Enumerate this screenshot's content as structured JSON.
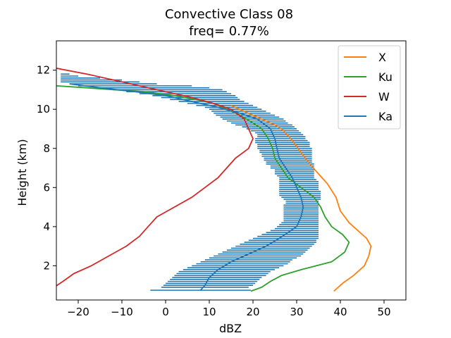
{
  "chart_data": {
    "type": "line",
    "title_line1": "Convective Class 08",
    "title_line2": "freq=  0.77%",
    "xlabel": "dBZ",
    "ylabel": "Height (km)",
    "xlim": [
      -25,
      55
    ],
    "ylim": [
      0.25,
      13.5
    ],
    "xticks": [
      -20,
      -10,
      0,
      10,
      20,
      30,
      40,
      50
    ],
    "yticks": [
      2,
      4,
      6,
      8,
      10,
      12
    ],
    "grid": false,
    "legend_position": "top-right",
    "series": [
      {
        "name": "X",
        "color": "#ff7f0e",
        "points": [
          [
            38.5,
            0.7
          ],
          [
            40.5,
            1.1
          ],
          [
            43,
            1.5
          ],
          [
            45.5,
            2.0
          ],
          [
            46.5,
            2.5
          ],
          [
            47,
            3.0
          ],
          [
            46,
            3.4
          ],
          [
            44,
            3.8
          ],
          [
            42,
            4.2
          ],
          [
            40,
            4.8
          ],
          [
            39,
            5.5
          ],
          [
            37,
            6.2
          ],
          [
            35,
            6.7
          ],
          [
            33,
            7.2
          ],
          [
            31,
            7.8
          ],
          [
            29,
            8.4
          ],
          [
            27,
            8.9
          ],
          [
            25,
            9.2
          ],
          [
            23,
            9.4
          ],
          [
            21,
            9.6
          ],
          [
            19,
            9.8
          ],
          [
            17,
            10.0
          ],
          [
            15,
            10.2
          ]
        ]
      },
      {
        "name": "Ku",
        "color": "#2ca02c",
        "points": [
          [
            19.5,
            0.7
          ],
          [
            22,
            0.9
          ],
          [
            24,
            1.2
          ],
          [
            26.5,
            1.5
          ],
          [
            31,
            1.8
          ],
          [
            38,
            2.2
          ],
          [
            41,
            2.7
          ],
          [
            42,
            3.2
          ],
          [
            40.5,
            3.6
          ],
          [
            38,
            4.0
          ],
          [
            36.5,
            4.5
          ],
          [
            35.5,
            5.0
          ],
          [
            34,
            5.5
          ],
          [
            31,
            6.0
          ],
          [
            28,
            6.5
          ],
          [
            26.5,
            7.0
          ],
          [
            25,
            7.5
          ],
          [
            24.5,
            8.0
          ],
          [
            23.5,
            8.5
          ],
          [
            22,
            9.0
          ],
          [
            20,
            9.3
          ],
          [
            17,
            9.7
          ],
          [
            14,
            10.0
          ],
          [
            11,
            10.3
          ],
          [
            7,
            10.5
          ],
          [
            2,
            10.7
          ],
          [
            -5,
            10.9
          ],
          [
            -12,
            11.0
          ],
          [
            -18,
            11.1
          ],
          [
            -25,
            11.2
          ]
        ]
      },
      {
        "name": "W",
        "color": "#d62728",
        "points": [
          [
            -25.5,
            0.9
          ],
          [
            -23.5,
            1.2
          ],
          [
            -21,
            1.6
          ],
          [
            -17,
            2.0
          ],
          [
            -13,
            2.5
          ],
          [
            -9,
            3.0
          ],
          [
            -6,
            3.5
          ],
          [
            -4,
            4.0
          ],
          [
            -2,
            4.5
          ],
          [
            2,
            5.0
          ],
          [
            6,
            5.5
          ],
          [
            9,
            6.0
          ],
          [
            12,
            6.5
          ],
          [
            14,
            7.0
          ],
          [
            16,
            7.5
          ],
          [
            19,
            8.0
          ],
          [
            20,
            8.5
          ],
          [
            19,
            9.0
          ],
          [
            18,
            9.5
          ],
          [
            15,
            10.0
          ],
          [
            11,
            10.3
          ],
          [
            6,
            10.6
          ],
          [
            0,
            10.9
          ],
          [
            -6,
            11.2
          ],
          [
            -12,
            11.5
          ],
          [
            -18,
            11.8
          ],
          [
            -25,
            12.1
          ]
        ]
      },
      {
        "name": "Ka",
        "color": "#1f77b4",
        "points": [
          [
            8,
            0.75
          ],
          [
            9,
            1.0
          ],
          [
            10,
            1.4
          ],
          [
            12,
            1.8
          ],
          [
            15,
            2.2
          ],
          [
            19,
            2.6
          ],
          [
            23,
            3.0
          ],
          [
            26,
            3.4
          ],
          [
            28,
            3.7
          ],
          [
            30,
            4.0
          ],
          [
            31,
            4.5
          ],
          [
            31.5,
            5.0
          ],
          [
            31,
            5.5
          ],
          [
            30,
            6.0
          ],
          [
            29,
            6.5
          ],
          [
            27.5,
            7.0
          ],
          [
            26,
            7.5
          ],
          [
            25.5,
            8.0
          ],
          [
            25,
            8.5
          ],
          [
            24,
            9.0
          ],
          [
            21,
            9.5
          ],
          [
            17,
            9.8
          ],
          [
            12,
            10.1
          ],
          [
            6,
            10.4
          ],
          [
            0,
            10.7
          ],
          [
            -7,
            10.9
          ],
          [
            -15,
            11.1
          ],
          [
            -22,
            11.3
          ]
        ]
      }
    ],
    "ka_spread": {
      "color": "#1f77b4",
      "rows": [
        [
          -3.5,
          19.5,
          0.75
        ],
        [
          -1,
          19,
          0.9
        ],
        [
          -0.5,
          20,
          1.0
        ],
        [
          0,
          20.5,
          1.1
        ],
        [
          0.5,
          21,
          1.2
        ],
        [
          1,
          21.5,
          1.3
        ],
        [
          1.5,
          22,
          1.4
        ],
        [
          2,
          23,
          1.5
        ],
        [
          2.5,
          23.5,
          1.6
        ],
        [
          3,
          24,
          1.7
        ],
        [
          4,
          25,
          1.8
        ],
        [
          5,
          26,
          1.9
        ],
        [
          6,
          27,
          2.0
        ],
        [
          7,
          28,
          2.1
        ],
        [
          8,
          28.5,
          2.2
        ],
        [
          9,
          29,
          2.3
        ],
        [
          10,
          30,
          2.4
        ],
        [
          11,
          31,
          2.5
        ],
        [
          12,
          31.5,
          2.6
        ],
        [
          13,
          32,
          2.7
        ],
        [
          14,
          32.5,
          2.8
        ],
        [
          15,
          33,
          2.9
        ],
        [
          16,
          33.5,
          3.0
        ],
        [
          17,
          34,
          3.1
        ],
        [
          18,
          34.5,
          3.2
        ],
        [
          19,
          34.5,
          3.3
        ],
        [
          20,
          35,
          3.4
        ],
        [
          21,
          35,
          3.5
        ],
        [
          22,
          35,
          3.6
        ],
        [
          23,
          35,
          3.7
        ],
        [
          24,
          35,
          3.8
        ],
        [
          25,
          35,
          3.9
        ],
        [
          25.5,
          35,
          4.0
        ],
        [
          26,
          35,
          4.1
        ],
        [
          26.5,
          35,
          4.2
        ],
        [
          27,
          35,
          4.3
        ],
        [
          27,
          35,
          4.4
        ],
        [
          27,
          35,
          4.5
        ],
        [
          27,
          35,
          4.6
        ],
        [
          27,
          35,
          4.7
        ],
        [
          27,
          35,
          4.8
        ],
        [
          27,
          35,
          4.9
        ],
        [
          27,
          35,
          5.0
        ],
        [
          27,
          35,
          5.1
        ],
        [
          27.5,
          35,
          5.2
        ],
        [
          27.5,
          35,
          5.3
        ],
        [
          27,
          35.5,
          5.4
        ],
        [
          26.5,
          35.5,
          5.5
        ],
        [
          26,
          35.5,
          5.6
        ],
        [
          26,
          35.5,
          5.7
        ],
        [
          26,
          35.5,
          5.8
        ],
        [
          26,
          35,
          5.9
        ],
        [
          26,
          35,
          6.0
        ],
        [
          26,
          35,
          6.1
        ],
        [
          26,
          35,
          6.2
        ],
        [
          26,
          35,
          6.3
        ],
        [
          26,
          34.5,
          6.4
        ],
        [
          26,
          34,
          6.5
        ],
        [
          25.5,
          34,
          6.6
        ],
        [
          25,
          34,
          6.7
        ],
        [
          25,
          34,
          6.8
        ],
        [
          25,
          34,
          6.9
        ],
        [
          24,
          34,
          7.0
        ],
        [
          24,
          34,
          7.1
        ],
        [
          23,
          34,
          7.2
        ],
        [
          23,
          33.5,
          7.3
        ],
        [
          22.5,
          33.5,
          7.4
        ],
        [
          22.5,
          33.5,
          7.5
        ],
        [
          22,
          33.5,
          7.6
        ],
        [
          22,
          33.5,
          7.7
        ],
        [
          21.5,
          33.5,
          7.8
        ],
        [
          21.5,
          33.5,
          7.9
        ],
        [
          21,
          33.5,
          8.0
        ],
        [
          21,
          33,
          8.1
        ],
        [
          21,
          33,
          8.2
        ],
        [
          20.5,
          33,
          8.3
        ],
        [
          20.5,
          32.5,
          8.4
        ],
        [
          20.5,
          32,
          8.5
        ],
        [
          21,
          32,
          8.6
        ],
        [
          21,
          31.5,
          8.7
        ],
        [
          20.5,
          31,
          8.8
        ],
        [
          19.5,
          30.5,
          8.9
        ],
        [
          18.5,
          30,
          9.0
        ],
        [
          17.5,
          29.5,
          9.1
        ],
        [
          16,
          29,
          9.2
        ],
        [
          15,
          28,
          9.3
        ],
        [
          14,
          27.5,
          9.4
        ],
        [
          13,
          27,
          9.5
        ],
        [
          12.5,
          26,
          9.6
        ],
        [
          11.5,
          25,
          9.7
        ],
        [
          11,
          24,
          9.8
        ],
        [
          10.5,
          23,
          9.9
        ],
        [
          10,
          22,
          10.0
        ],
        [
          9,
          21,
          10.1
        ],
        [
          7,
          20,
          10.2
        ],
        [
          5,
          19,
          10.3
        ],
        [
          3,
          18,
          10.4
        ],
        [
          1,
          17,
          10.5
        ],
        [
          -1,
          16.5,
          10.6
        ],
        [
          -3,
          16,
          10.7
        ],
        [
          -6,
          15,
          10.8
        ],
        [
          -9,
          14,
          10.9
        ],
        [
          -12,
          13,
          11.0
        ],
        [
          -16,
          10,
          11.1
        ],
        [
          -20,
          6,
          11.2
        ],
        [
          -22,
          -2,
          11.3
        ],
        [
          -24,
          -6,
          11.4
        ],
        [
          -24,
          -10,
          11.5
        ],
        [
          -24,
          -15,
          11.6
        ],
        [
          -24,
          -20,
          11.7
        ],
        [
          -24,
          -22,
          11.8
        ]
      ]
    }
  }
}
